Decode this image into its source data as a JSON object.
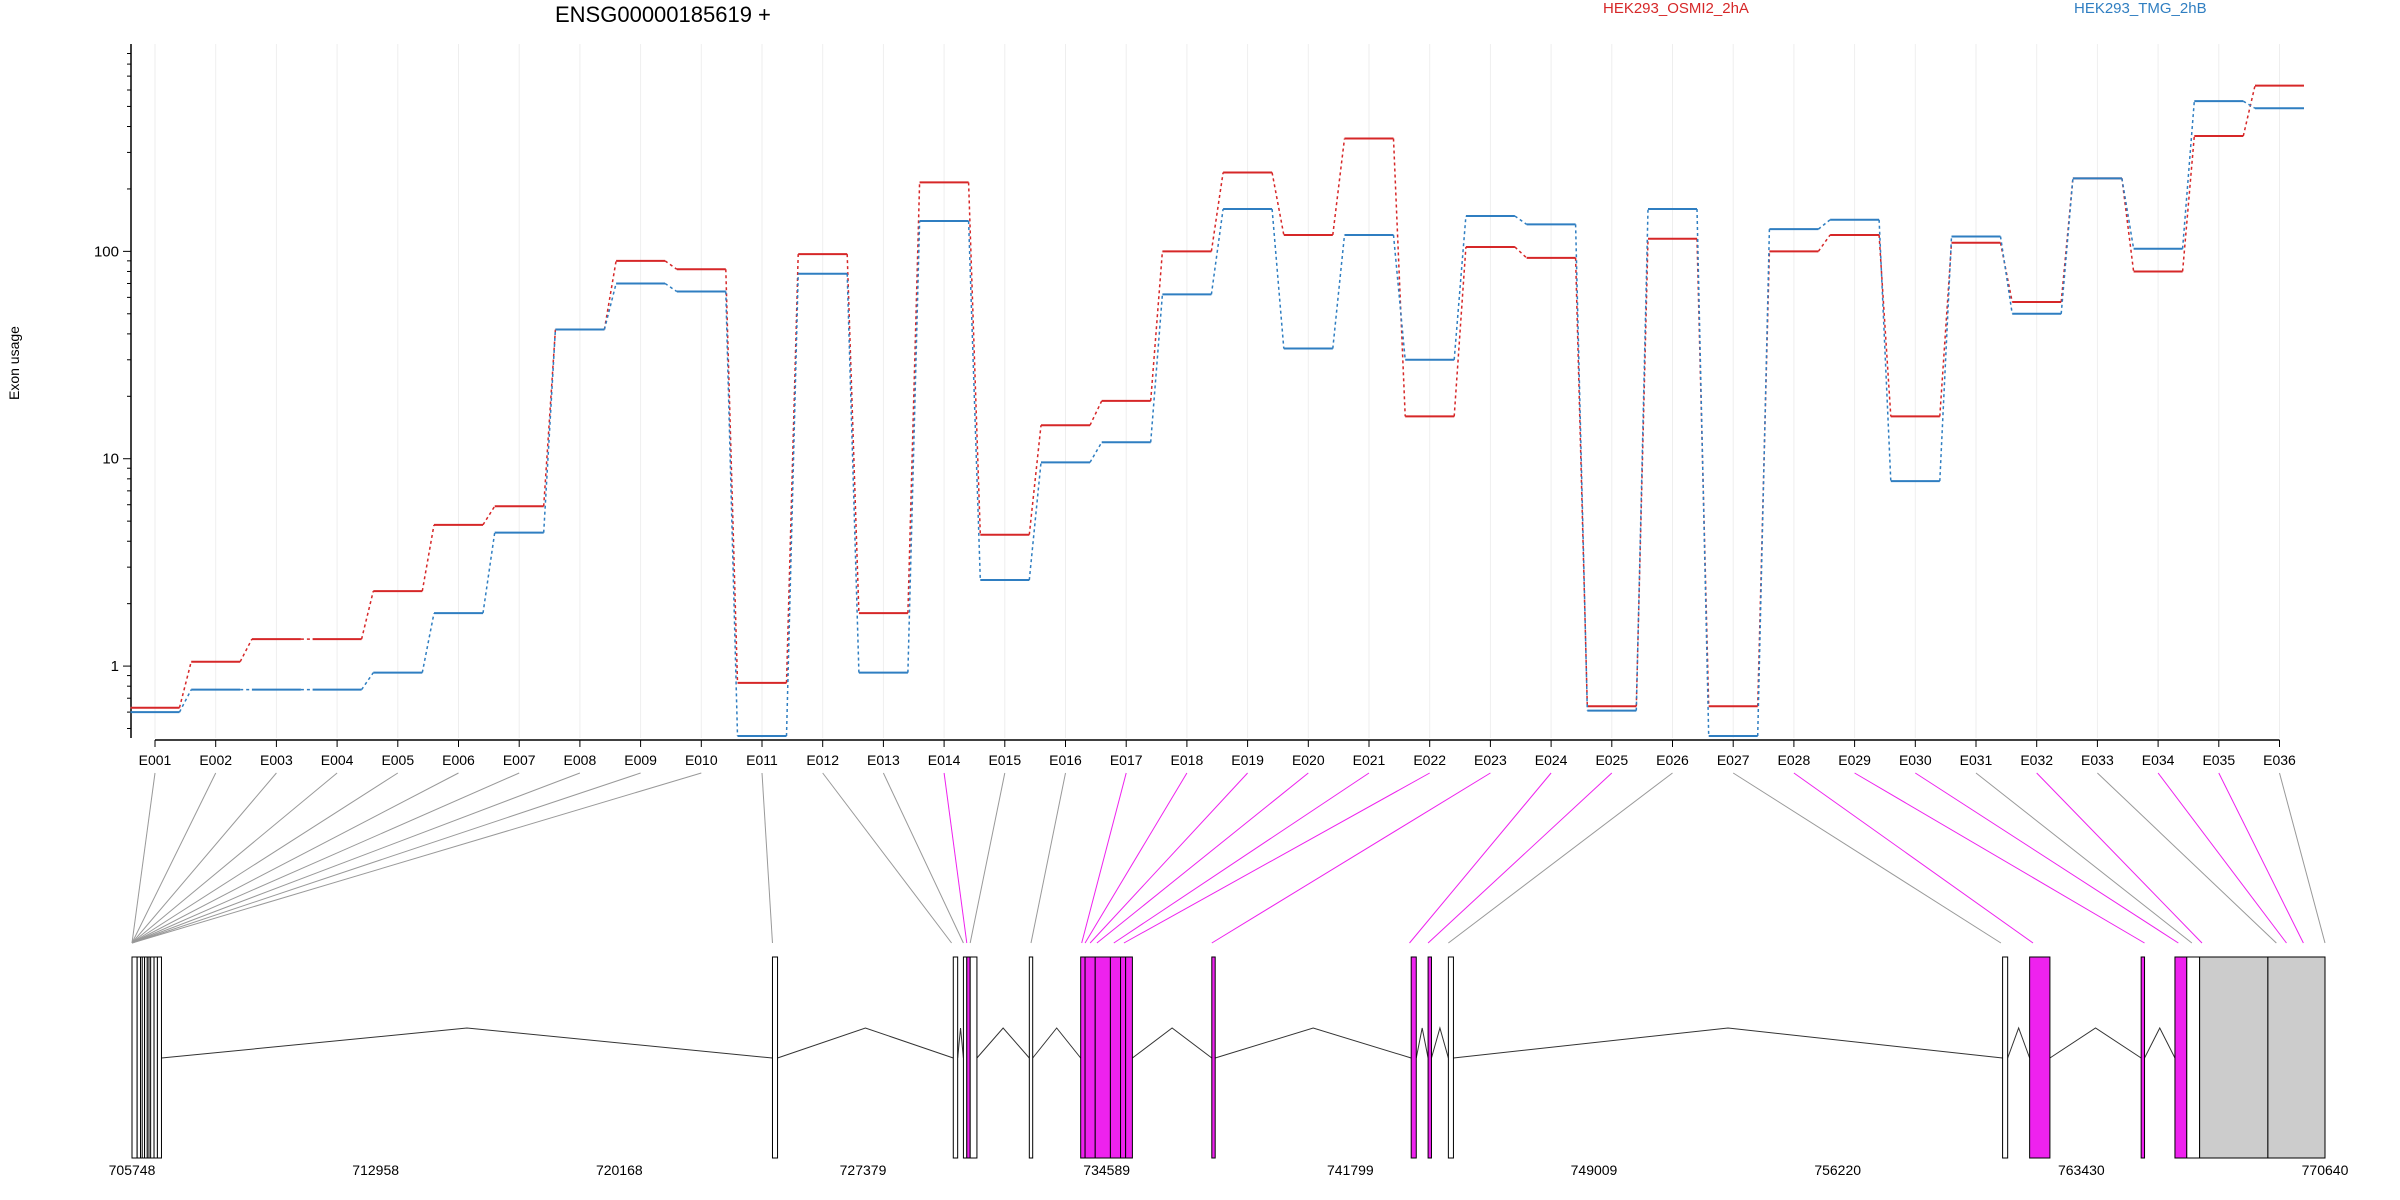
{
  "chart_data": {
    "type": "line",
    "title": "ENSG00000185619 +",
    "xlabel": "",
    "ylabel": "Exon usage",
    "yscale": "log",
    "ylim": [
      0.45,
      1000
    ],
    "yticks": [
      "1",
      "10",
      "100"
    ],
    "grid": "vertical lines at exons",
    "legend_placement": "top",
    "categories": [
      "E001",
      "E002",
      "E003",
      "E004",
      "E005",
      "E006",
      "E007",
      "E008",
      "E009",
      "E010",
      "E011",
      "E012",
      "E013",
      "E014",
      "E015",
      "E016",
      "E017",
      "E018",
      "E019",
      "E020",
      "E021",
      "E022",
      "E023",
      "E024",
      "E025",
      "E026",
      "E027",
      "E028",
      "E029",
      "E030",
      "E031",
      "E032",
      "E033",
      "E034",
      "E035",
      "E036"
    ],
    "series": [
      {
        "name": "HEK293_OSMI2_2hA",
        "color": "#d62728",
        "values": [
          0.63,
          1.05,
          1.35,
          1.35,
          2.3,
          4.8,
          5.9,
          42,
          90,
          82,
          0.83,
          97,
          1.8,
          215,
          4.3,
          14.5,
          19,
          100,
          240,
          120,
          350,
          16,
          105,
          93,
          0.64,
          115,
          0.64,
          100,
          120,
          16,
          110,
          57,
          225,
          80,
          360,
          630
        ]
      },
      {
        "name": "HEK293_TMG_2hB",
        "color": "#2f7ec1",
        "values": [
          0.6,
          0.77,
          0.77,
          0.77,
          0.93,
          1.8,
          4.4,
          42,
          70,
          64,
          0.46,
          78,
          0.93,
          140,
          2.6,
          9.6,
          12,
          62,
          160,
          34,
          120,
          30,
          148,
          135,
          0.61,
          160,
          0.46,
          128,
          142,
          7.8,
          118,
          50,
          225,
          103,
          530,
          490
        ]
      }
    ],
    "genomic_axis": {
      "ticks": [
        "705748",
        "712958",
        "720168",
        "727379",
        "734589",
        "741799",
        "749009",
        "756220",
        "763430",
        "770640"
      ],
      "start": 705748,
      "end": 770640
    },
    "exon_highlight": [
      false,
      false,
      false,
      false,
      false,
      false,
      false,
      false,
      false,
      false,
      false,
      false,
      false,
      true,
      false,
      false,
      true,
      true,
      true,
      true,
      true,
      true,
      true,
      true,
      true,
      false,
      false,
      true,
      true,
      true,
      false,
      true,
      false,
      true,
      true,
      false
    ],
    "colors": {
      "highlight": "#ee22ee",
      "utr": "#cccccc",
      "link": "#999999",
      "intron": "#333333",
      "grid": "#eeeeee"
    }
  }
}
